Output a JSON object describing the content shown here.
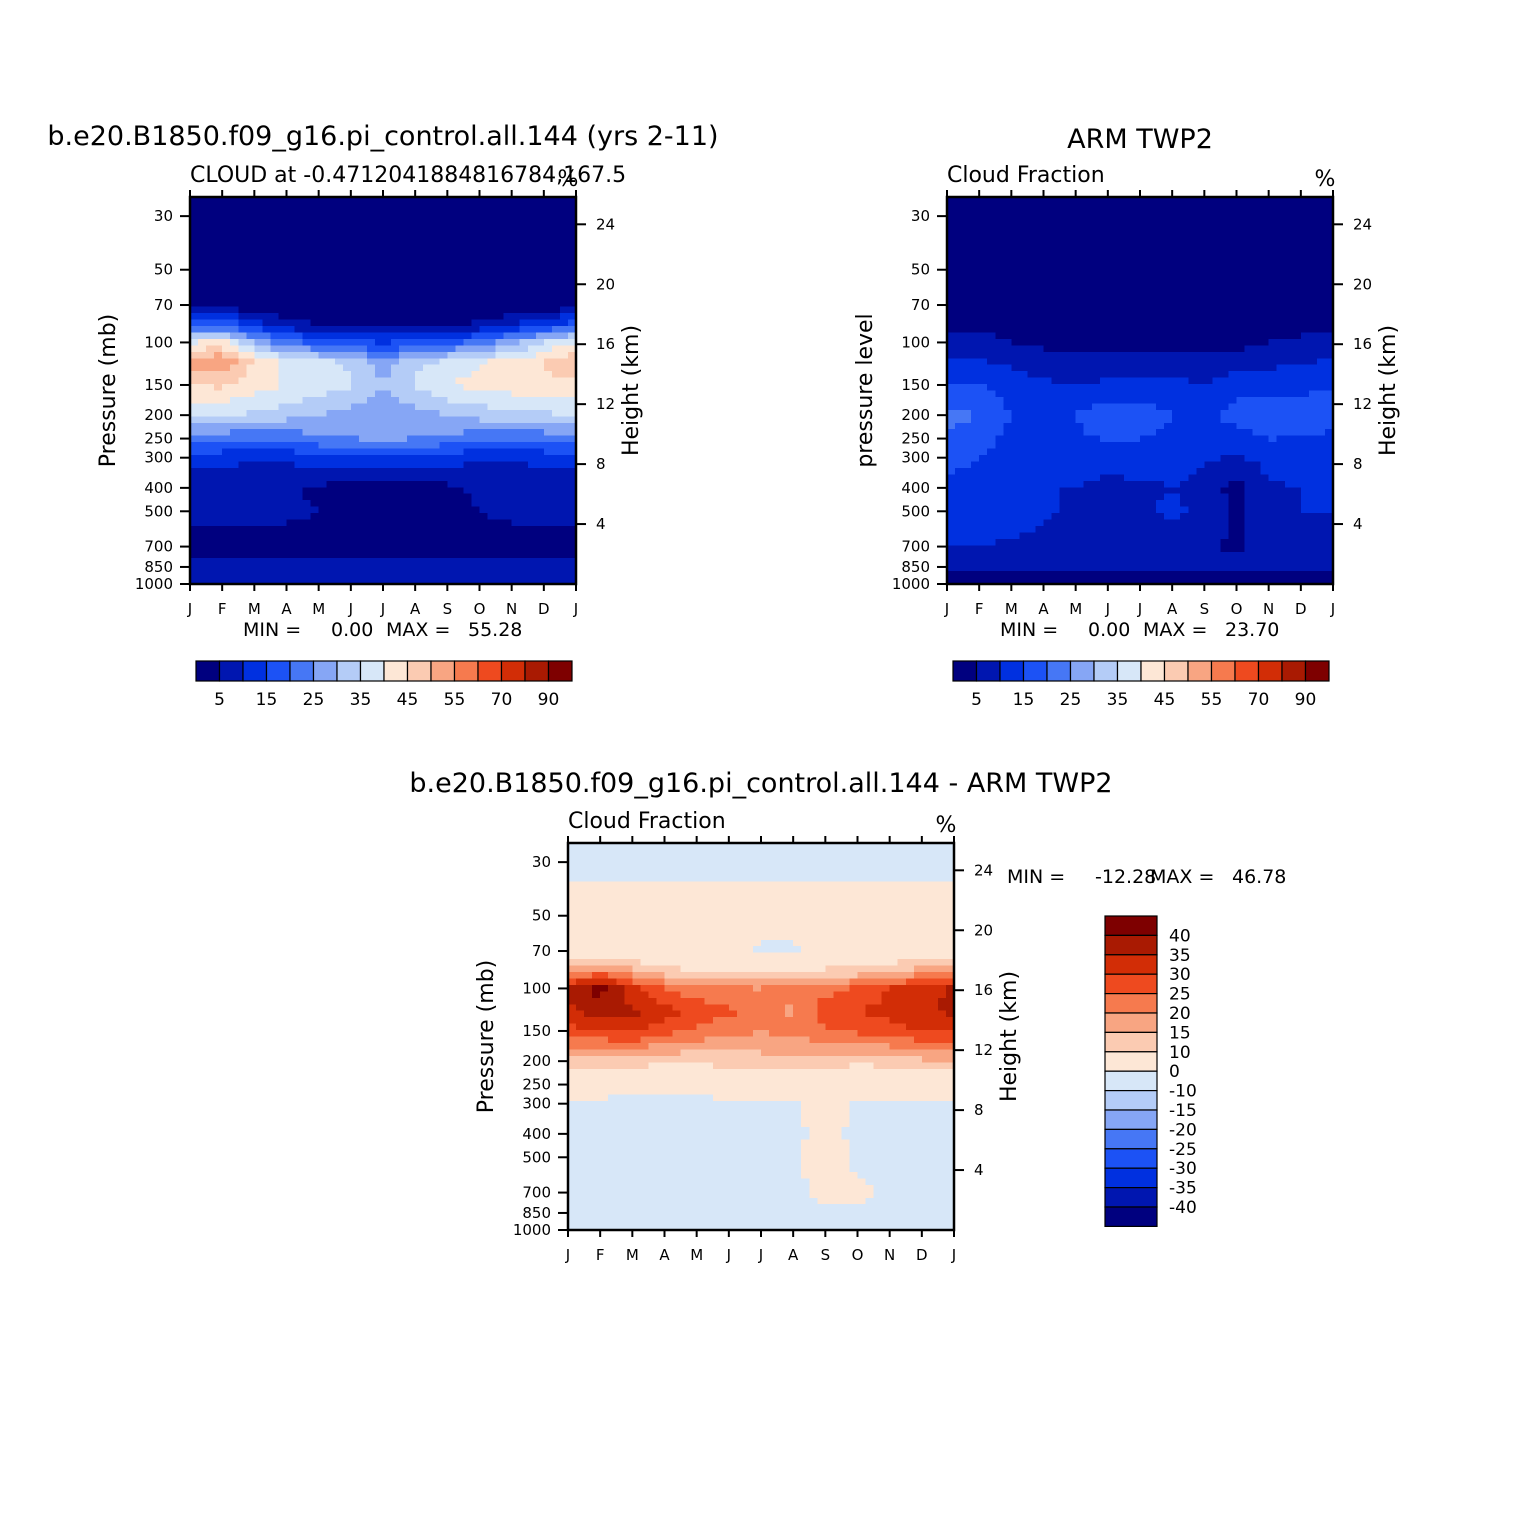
{
  "colors": {
    "cloud_scale": [
      "#00007f",
      "#0016b0",
      "#0030e0",
      "#1c52f5",
      "#4677f5",
      "#86a6f5",
      "#b4ccf7",
      "#d7e7f8",
      "#fde7d6",
      "#fbcbb2",
      "#f8a582",
      "#f67a4e",
      "#ee4a1f",
      "#d22d06",
      "#a91a02",
      "#7e0000"
    ],
    "diff_scale": [
      "#00007f",
      "#0016b0",
      "#0030e0",
      "#1c52f5",
      "#4677f5",
      "#86a6f5",
      "#b4ccf7",
      "#d7e7f8",
      "#fde7d6",
      "#fbcbb2",
      "#f8a582",
      "#f67a4e",
      "#ee4a1f",
      "#d22d06",
      "#a91a02",
      "#7e0000"
    ]
  },
  "chart_data": [
    {
      "type": "heatmap",
      "title": "b.e20.B1850.f09_g16.pi_control.all.144 (yrs 2-11)",
      "subtitle": "CLOUD at -0.4712041884816784,167.5",
      "units": "%",
      "xlabel": "",
      "ylabel": "Pressure (mb)",
      "ylabel_right": "Height (km)",
      "x_ticks": [
        "J",
        "F",
        "M",
        "A",
        "M",
        "J",
        "J",
        "A",
        "S",
        "O",
        "N",
        "D",
        "J"
      ],
      "y_ticks": [
        30,
        50,
        70,
        100,
        150,
        200,
        250,
        300,
        400,
        500,
        700,
        850,
        1000
      ],
      "y_ticks_right": [
        24,
        20,
        16,
        12,
        8,
        4
      ],
      "y_scale": "log",
      "ylim": [
        1000,
        25
      ],
      "min_label": "MIN =",
      "min_value": "0.00",
      "max_label": "MAX =",
      "max_value": "55.28",
      "colorbar_labels": [
        "5",
        "15",
        "25",
        "35",
        "45",
        "55",
        "70",
        "90"
      ],
      "levels": [
        {
          "p": 30,
          "v": [
            0,
            0,
            0,
            0,
            0,
            0,
            0,
            0,
            0,
            0,
            0,
            0,
            0
          ]
        },
        {
          "p": 70,
          "v": [
            2,
            2,
            1,
            0,
            0,
            0,
            0,
            0,
            0,
            0,
            0,
            1,
            2
          ]
        },
        {
          "p": 85,
          "v": [
            18,
            20,
            12,
            8,
            5,
            4,
            4,
            4,
            5,
            6,
            10,
            15,
            18
          ]
        },
        {
          "p": 100,
          "v": [
            40,
            42,
            30,
            22,
            18,
            16,
            15,
            16,
            18,
            22,
            28,
            35,
            40
          ]
        },
        {
          "p": 120,
          "v": [
            52,
            55,
            44,
            38,
            36,
            34,
            27,
            33,
            36,
            39,
            42,
            45,
            50
          ]
        },
        {
          "p": 150,
          "v": [
            44,
            46,
            42,
            40,
            38,
            36,
            30,
            36,
            40,
            42,
            43,
            44,
            44
          ]
        },
        {
          "p": 200,
          "v": [
            36,
            36,
            34,
            32,
            30,
            28,
            26,
            28,
            30,
            32,
            33,
            34,
            36
          ]
        },
        {
          "p": 250,
          "v": [
            22,
            22,
            20,
            22,
            24,
            25,
            26,
            25,
            24,
            22,
            20,
            22,
            22
          ]
        },
        {
          "p": 300,
          "v": [
            12,
            12,
            10,
            11,
            13,
            14,
            15,
            14,
            12,
            11,
            10,
            12,
            12
          ]
        },
        {
          "p": 400,
          "v": [
            6,
            6,
            6,
            6,
            4,
            3,
            3,
            3,
            4,
            6,
            6,
            6,
            6
          ]
        },
        {
          "p": 500,
          "v": [
            6,
            6,
            6,
            6,
            5,
            3,
            3,
            3,
            3,
            5,
            6,
            6,
            6
          ]
        },
        {
          "p": 700,
          "v": [
            3,
            3,
            3,
            3,
            3,
            3,
            3,
            3,
            3,
            3,
            3,
            3,
            3
          ]
        },
        {
          "p": 850,
          "v": [
            6,
            6,
            6,
            6,
            6,
            7,
            7,
            7,
            6,
            6,
            6,
            6,
            6
          ]
        },
        {
          "p": 1000,
          "v": [
            8,
            8,
            8,
            8,
            8,
            8,
            8,
            8,
            8,
            8,
            8,
            8,
            8
          ]
        }
      ]
    },
    {
      "type": "heatmap",
      "title": "ARM TWP2",
      "subtitle": "Cloud Fraction",
      "units": "%",
      "xlabel": "",
      "ylabel": "pressure level",
      "ylabel_right": "Height (km)",
      "x_ticks": [
        "J",
        "F",
        "M",
        "A",
        "M",
        "J",
        "J",
        "A",
        "S",
        "O",
        "N",
        "D",
        "J"
      ],
      "y_ticks": [
        30,
        50,
        70,
        100,
        150,
        200,
        250,
        300,
        400,
        500,
        700,
        850,
        1000
      ],
      "y_ticks_right": [
        24,
        20,
        16,
        12,
        8,
        4
      ],
      "y_scale": "log",
      "ylim": [
        1000,
        25
      ],
      "min_label": "MIN =",
      "min_value": "0.00",
      "max_label": "MAX =",
      "max_value": "23.70",
      "colorbar_labels": [
        "5",
        "15",
        "25",
        "35",
        "45",
        "55",
        "70",
        "90"
      ],
      "levels": [
        {
          "p": 30,
          "v": [
            0,
            0,
            0,
            0,
            0,
            0,
            0,
            0,
            0,
            0,
            0,
            0,
            0
          ]
        },
        {
          "p": 70,
          "v": [
            1,
            1,
            1,
            1,
            1,
            1,
            1,
            1,
            1,
            1,
            1,
            1,
            1
          ]
        },
        {
          "p": 100,
          "v": [
            7,
            7,
            5,
            4,
            3,
            3,
            3,
            3,
            3,
            3,
            5,
            6,
            7
          ]
        },
        {
          "p": 150,
          "v": [
            15,
            15,
            13,
            11,
            10,
            11,
            11,
            12,
            10,
            13,
            13,
            14,
            15
          ]
        },
        {
          "p": 200,
          "v": [
            22,
            20,
            15,
            14,
            15,
            19,
            18,
            15,
            14,
            17,
            19,
            17,
            16
          ]
        },
        {
          "p": 300,
          "v": [
            17,
            15,
            12,
            12,
            13,
            13,
            13,
            12,
            11,
            9,
            12,
            13,
            13
          ]
        },
        {
          "p": 400,
          "v": [
            13,
            13,
            12,
            10,
            10,
            8,
            9,
            10,
            8,
            3,
            9,
            10,
            10
          ]
        },
        {
          "p": 500,
          "v": [
            14,
            14,
            13,
            11,
            9,
            8,
            9,
            11,
            9,
            4,
            9,
            10,
            10
          ]
        },
        {
          "p": 700,
          "v": [
            10,
            10,
            9,
            8,
            6,
            7,
            8,
            7,
            6,
            4,
            8,
            8,
            9
          ]
        },
        {
          "p": 850,
          "v": [
            7,
            7,
            7,
            7,
            7,
            7,
            7,
            7,
            7,
            7,
            7,
            7,
            7
          ]
        },
        {
          "p": 1000,
          "v": [
            2,
            2,
            2,
            2,
            2,
            2,
            2,
            2,
            2,
            2,
            2,
            2,
            2
          ]
        }
      ]
    },
    {
      "type": "heatmap",
      "title": "b.e20.B1850.f09_g16.pi_control.all.144 - ARM TWP2",
      "subtitle": "Cloud Fraction",
      "units": "%",
      "xlabel": "",
      "ylabel": "Pressure (mb)",
      "ylabel_right": "Height (km)",
      "x_ticks": [
        "J",
        "F",
        "M",
        "A",
        "M",
        "J",
        "J",
        "A",
        "S",
        "O",
        "N",
        "D",
        "J"
      ],
      "y_ticks": [
        30,
        50,
        70,
        100,
        150,
        200,
        250,
        300,
        400,
        500,
        700,
        850,
        1000
      ],
      "y_ticks_right": [
        24,
        20,
        16,
        12,
        8,
        4
      ],
      "y_scale": "log",
      "ylim": [
        1000,
        25
      ],
      "min_label": "MIN =",
      "min_value": "-12.28",
      "max_label": "MAX =",
      "max_value": "46.78",
      "colorbar_labels": [
        "40",
        "35",
        "30",
        "25",
        "20",
        "15",
        "10",
        "0",
        "-10",
        "-15",
        "-20",
        "-25",
        "-30",
        "-35",
        "-40"
      ],
      "levels": [
        {
          "p": 30,
          "v": [
            -2,
            -2,
            -2,
            -2,
            -2,
            -2,
            -2,
            -2,
            -2,
            -2,
            -2,
            -2,
            -2
          ]
        },
        {
          "p": 50,
          "v": [
            3,
            3,
            3,
            3,
            3,
            3,
            3,
            3,
            3,
            3,
            3,
            3,
            3
          ]
        },
        {
          "p": 70,
          "v": [
            4,
            4,
            4,
            3,
            4,
            4,
            -1,
            -1,
            4,
            4,
            4,
            4,
            4
          ]
        },
        {
          "p": 85,
          "v": [
            18,
            22,
            16,
            12,
            10,
            9,
            9,
            10,
            11,
            12,
            14,
            17,
            20
          ]
        },
        {
          "p": 100,
          "v": [
            36,
            42,
            32,
            25,
            22,
            21,
            20,
            22,
            23,
            26,
            30,
            33,
            36
          ]
        },
        {
          "p": 125,
          "v": [
            34,
            38,
            36,
            33,
            28,
            26,
            23,
            19,
            28,
            30,
            32,
            34,
            36
          ]
        },
        {
          "p": 150,
          "v": [
            28,
            30,
            31,
            27,
            24,
            22,
            20,
            22,
            24,
            26,
            28,
            30,
            30
          ]
        },
        {
          "p": 200,
          "v": [
            14,
            12,
            12,
            11,
            11,
            12,
            13,
            14,
            12,
            11,
            12,
            14,
            14
          ]
        },
        {
          "p": 250,
          "v": [
            3,
            3,
            3,
            3,
            3,
            4,
            4,
            5,
            5,
            4,
            3,
            3,
            3
          ]
        },
        {
          "p": 300,
          "v": [
            -1,
            -1,
            -2,
            -2,
            -2,
            -1,
            -1,
            -1,
            3,
            -1,
            -1,
            -1,
            -1
          ]
        },
        {
          "p": 400,
          "v": [
            -2,
            -6,
            -2,
            -2,
            -2,
            -2,
            -2,
            -2,
            3,
            -2,
            -2,
            -2,
            -2
          ]
        },
        {
          "p": 500,
          "v": [
            -2,
            -6,
            -2,
            -2,
            -2,
            -2,
            -2,
            -2,
            4,
            -2,
            -2,
            -2,
            -2
          ]
        },
        {
          "p": 700,
          "v": [
            -2,
            -2,
            -2,
            -2,
            -2,
            -2,
            -2,
            -2,
            3,
            2,
            -2,
            -2,
            -2
          ]
        },
        {
          "p": 850,
          "v": [
            -2,
            -2,
            -2,
            -2,
            -2,
            -2,
            -2,
            -2,
            -2,
            -2,
            -2,
            -2,
            -2
          ]
        },
        {
          "p": 1000,
          "v": [
            -2,
            -2,
            -3,
            -2,
            -2,
            -2,
            -1,
            -1,
            -1,
            -2,
            -2,
            -2,
            -2
          ]
        }
      ]
    }
  ]
}
